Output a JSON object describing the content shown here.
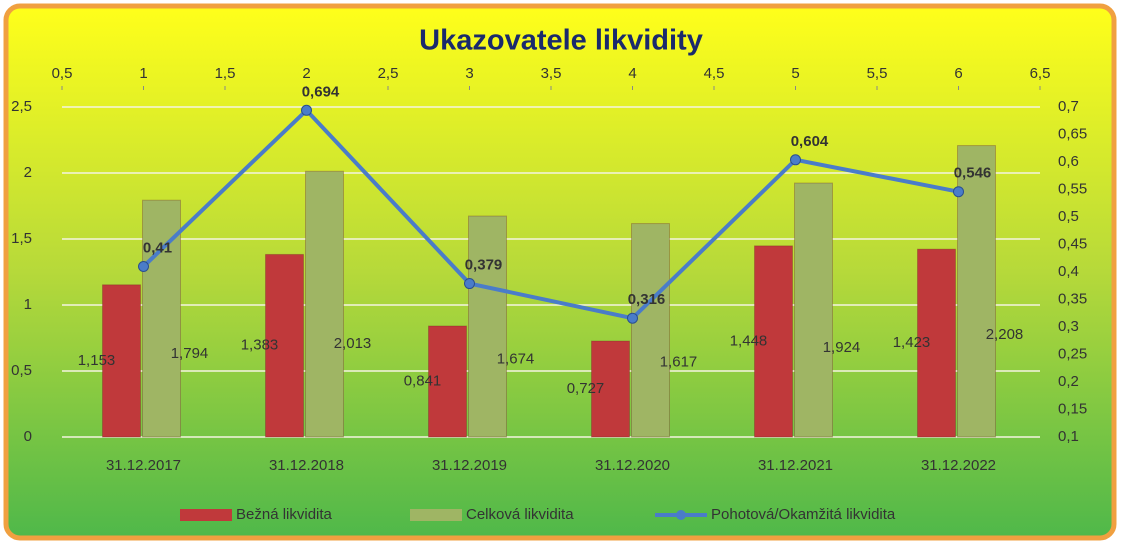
{
  "chart_data": {
    "type": "bar_line",
    "title": "Ukazovatele likvidity",
    "categories": [
      "31.12.2017",
      "31.12.2018",
      "31.12.2019",
      "31.12.2020",
      "31.12.2021",
      "31.12.2022"
    ],
    "series": [
      {
        "name": "Bežná likvidita",
        "color": "#c0393b",
        "type": "bar",
        "values": [
          1.153,
          1.383,
          0.841,
          0.727,
          1.448,
          1.423
        ],
        "value_labels": [
          "1,153",
          "1,383",
          "0,841",
          "0,727",
          "1,448",
          "1,423"
        ]
      },
      {
        "name": "Celková likvidita",
        "color": "#9fb564",
        "type": "bar",
        "values": [
          1.794,
          2.013,
          1.674,
          1.617,
          1.924,
          2.208
        ],
        "value_labels": [
          "1,794",
          "2,013",
          "1,674",
          "1,617",
          "1,924",
          "2,208"
        ]
      },
      {
        "name": "Pohotová/Okamžitá likvidita",
        "color": "#4a7cc9",
        "type": "line",
        "axis": "y2",
        "values": [
          0.41,
          0.694,
          0.379,
          0.316,
          0.604,
          0.546
        ],
        "value_labels": [
          "0,41",
          "0,694",
          "0,379",
          "0,316",
          "0,604",
          "0,546"
        ]
      }
    ],
    "xlim": [
      0.5,
      6.5
    ],
    "xticks": [
      {
        "value": 0.5,
        "label": "0,5"
      },
      1,
      {
        "value": 1.5,
        "label": "1,5"
      },
      2,
      {
        "value": 2.5,
        "label": "2,5"
      },
      3,
      {
        "value": 3.5,
        "label": "3,5"
      },
      4,
      {
        "value": 4.5,
        "label": "4,5"
      },
      5,
      {
        "value": 5.5,
        "label": "5,5"
      },
      6,
      {
        "value": 6.5,
        "label": "6,5"
      }
    ],
    "ylim": [
      0,
      2.5
    ],
    "yticks": [
      0,
      {
        "value": 0.5,
        "label": "0,5"
      },
      1,
      {
        "value": 1.5,
        "label": "1,5"
      },
      2,
      {
        "value": 2.5,
        "label": "2,5"
      }
    ],
    "y2lim": [
      0.1,
      0.7
    ],
    "y2ticks": [
      {
        "value": 0.1,
        "label": "0,1"
      },
      {
        "value": 0.15,
        "label": "0,15"
      },
      {
        "value": 0.2,
        "label": "0,2"
      },
      {
        "value": 0.25,
        "label": "0,25"
      },
      {
        "value": 0.3,
        "label": "0,3"
      },
      {
        "value": 0.35,
        "label": "0,35"
      },
      {
        "value": 0.4,
        "label": "0,4"
      },
      {
        "value": 0.45,
        "label": "0,45"
      },
      {
        "value": 0.5,
        "label": "0,5"
      },
      {
        "value": 0.55,
        "label": "0,55"
      },
      {
        "value": 0.6,
        "label": "0,6"
      },
      {
        "value": 0.65,
        "label": "0,65"
      },
      {
        "value": 0.7,
        "label": "0,7"
      }
    ],
    "grid": true,
    "legend": "bottom"
  }
}
